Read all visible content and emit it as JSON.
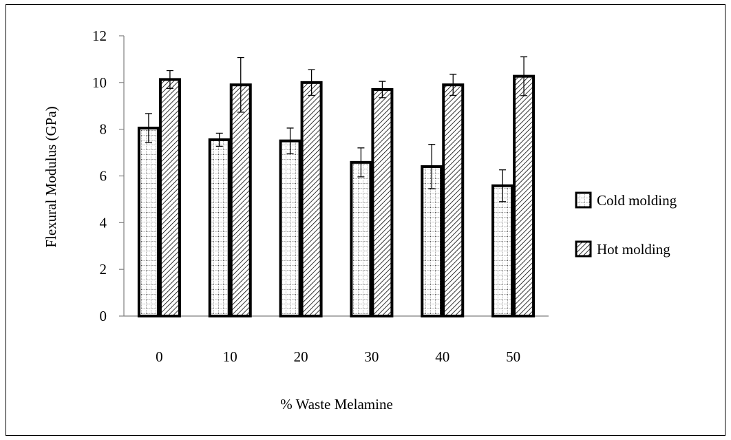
{
  "chart_data": {
    "type": "bar",
    "title": "",
    "xlabel": "% Waste Melamine",
    "ylabel": "Flexural Modulus (GPa)",
    "ylim": [
      0,
      12
    ],
    "yticks": [
      0,
      2,
      4,
      6,
      8,
      10,
      12
    ],
    "categories": [
      "0",
      "10",
      "20",
      "30",
      "40",
      "50"
    ],
    "series": [
      {
        "name": "Cold molding",
        "pattern": "dotted-grid",
        "values": [
          8.05,
          7.55,
          7.5,
          6.58,
          6.4,
          5.58
        ],
        "error": [
          0.62,
          0.28,
          0.55,
          0.62,
          0.95,
          0.68
        ]
      },
      {
        "name": "Hot molding",
        "pattern": "diagonal-hatch",
        "values": [
          10.13,
          9.9,
          10.0,
          9.7,
          9.9,
          10.27
        ],
        "error": [
          0.38,
          1.17,
          0.55,
          0.35,
          0.45,
          0.83
        ]
      }
    ],
    "legend_position": "right",
    "grid": false,
    "colors": {
      "bar_edge": "#000000",
      "axis": "#7f7f7f",
      "fill": "#ffffff"
    }
  }
}
